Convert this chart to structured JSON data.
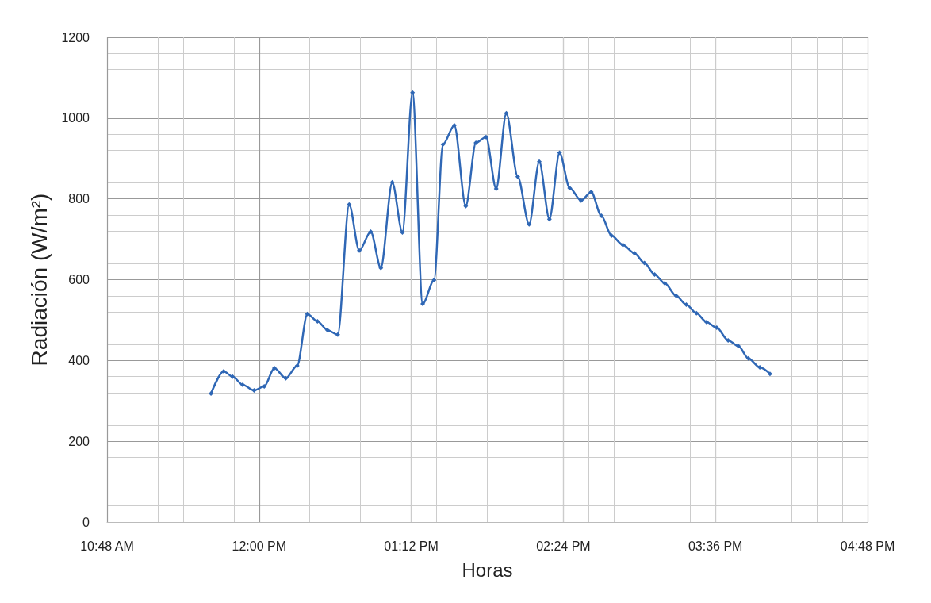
{
  "chart_data": {
    "type": "line",
    "xlabel": "Horas",
    "ylabel": "Radiación (W/m²)",
    "x": [
      11.62,
      11.72,
      11.79,
      11.87,
      11.96,
      12.04,
      12.12,
      12.21,
      12.3,
      12.38,
      12.46,
      12.54,
      12.62,
      12.71,
      12.79,
      12.88,
      12.96,
      13.05,
      13.13,
      13.21,
      13.29,
      13.38,
      13.45,
      13.54,
      13.63,
      13.71,
      13.79,
      13.87,
      13.95,
      14.04,
      14.13,
      14.21,
      14.29,
      14.37,
      14.45,
      14.54,
      14.62,
      14.7,
      14.78,
      14.87,
      14.96,
      15.04,
      15.12,
      15.2,
      15.29,
      15.37,
      15.45,
      15.53,
      15.61,
      15.7,
      15.78,
      15.86,
      15.95,
      16.03
    ],
    "series": [
      {
        "color": "#2f67b5",
        "values": [
          318,
          373,
          360,
          340,
          326,
          336,
          381,
          356,
          387,
          515,
          497,
          475,
          464,
          786,
          672,
          719,
          629,
          841,
          717,
          1063,
          540,
          599,
          935,
          982,
          782,
          939,
          953,
          825,
          1012,
          855,
          737,
          892,
          750,
          914,
          827,
          796,
          817,
          758,
          709,
          686,
          666,
          641,
          613,
          591,
          560,
          538,
          517,
          495,
          481,
          450,
          436,
          405,
          383,
          367
        ]
      }
    ],
    "xlim": [
      10.8,
      16.8
    ],
    "xticks": [
      {
        "value": 10.8,
        "label": "10:48 AM"
      },
      {
        "value": 12,
        "label": "12:00 PM"
      },
      {
        "value": 13.2,
        "label": "01:12 PM"
      },
      {
        "value": 14.4,
        "label": "02:24 PM"
      },
      {
        "value": 15.6,
        "label": "03:36 PM"
      },
      {
        "value": 16.8,
        "label": "04:48 PM"
      }
    ],
    "ylim": [
      0,
      1200
    ],
    "yticks": [
      0,
      200,
      400,
      600,
      800,
      1000,
      1200
    ],
    "grid": true,
    "marker": "diamond",
    "line_style": "solid"
  }
}
